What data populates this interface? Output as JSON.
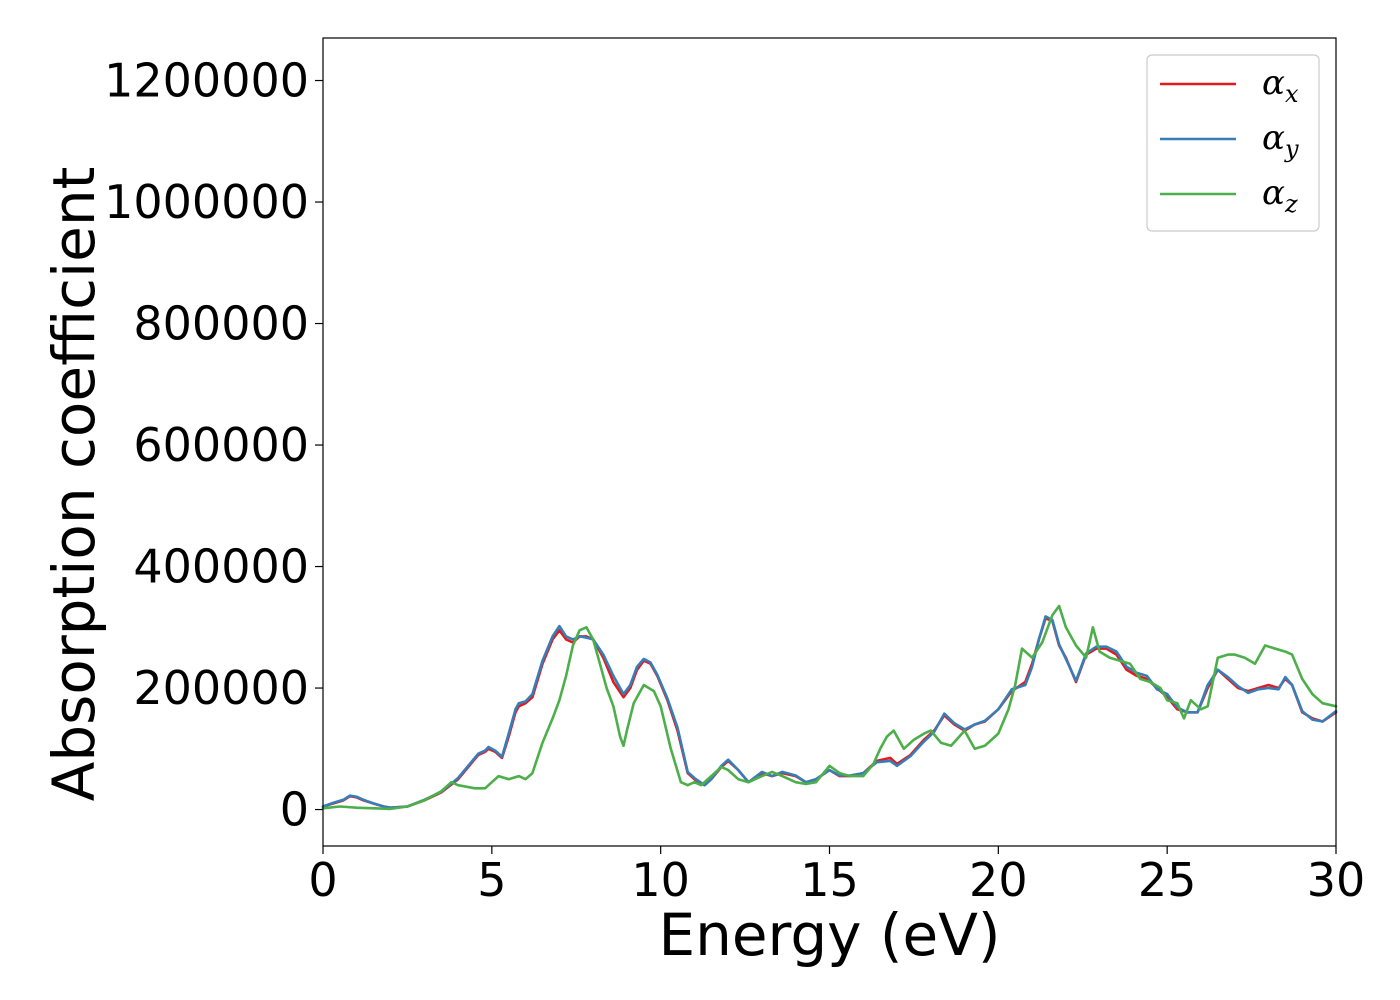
{
  "chart_data": {
    "type": "line",
    "xlabel": "Energy (eV)",
    "ylabel": "Absorption coefficient",
    "xlim": [
      0,
      30
    ],
    "ylim": [
      -60000,
      1270000
    ],
    "xticks": [
      0,
      5,
      10,
      15,
      20,
      25,
      30
    ],
    "xtick_labels": [
      "0",
      "5",
      "10",
      "15",
      "20",
      "25",
      "30"
    ],
    "yticks": [
      0,
      200000,
      400000,
      600000,
      800000,
      1000000,
      1200000
    ],
    "ytick_labels": [
      "0",
      "200000",
      "400000",
      "600000",
      "800000",
      "1000000",
      "1200000"
    ],
    "grid": false,
    "legend_position": "top-right",
    "series": [
      {
        "name": "α",
        "subscript": "x",
        "color": "#e41a1c",
        "x": [
          0,
          0.3,
          0.6,
          0.8,
          1.0,
          1.2,
          1.5,
          1.8,
          2.0,
          2.5,
          3.0,
          3.5,
          4.0,
          4.3,
          4.6,
          4.8,
          4.9,
          5.1,
          5.3,
          5.5,
          5.7,
          5.8,
          6.0,
          6.2,
          6.5,
          6.8,
          7.0,
          7.2,
          7.4,
          7.6,
          7.8,
          8.0,
          8.3,
          8.6,
          8.9,
          9.1,
          9.3,
          9.5,
          9.7,
          9.9,
          10.2,
          10.5,
          10.8,
          11.0,
          11.3,
          11.5,
          11.8,
          12.0,
          12.3,
          12.6,
          13.0,
          13.3,
          13.6,
          14.0,
          14.3,
          14.6,
          15.0,
          15.3,
          15.6,
          16.0,
          16.4,
          16.8,
          17.0,
          17.4,
          17.8,
          18.1,
          18.4,
          18.7,
          19.0,
          19.3,
          19.6,
          20.0,
          20.4,
          20.8,
          21.0,
          21.2,
          21.4,
          21.6,
          21.8,
          22.0,
          22.3,
          22.6,
          22.9,
          23.2,
          23.5,
          23.8,
          24.1,
          24.4,
          24.7,
          25.0,
          25.3,
          25.6,
          25.9,
          26.2,
          26.5,
          26.8,
          27.1,
          27.4,
          27.7,
          28.0,
          28.3,
          28.5,
          28.7,
          29.0,
          29.3,
          29.6,
          30.0
        ],
        "y": [
          5000,
          10000,
          15000,
          22000,
          20000,
          15000,
          10000,
          5000,
          3000,
          5000,
          15000,
          28000,
          50000,
          70000,
          90000,
          95000,
          100000,
          95000,
          85000,
          120000,
          160000,
          170000,
          175000,
          185000,
          240000,
          280000,
          295000,
          280000,
          275000,
          285000,
          285000,
          280000,
          250000,
          210000,
          185000,
          200000,
          230000,
          245000,
          240000,
          220000,
          180000,
          130000,
          60000,
          50000,
          40000,
          50000,
          70000,
          80000,
          65000,
          45000,
          60000,
          55000,
          60000,
          55000,
          45000,
          50000,
          65000,
          55000,
          55000,
          60000,
          80000,
          85000,
          75000,
          90000,
          115000,
          130000,
          155000,
          140000,
          130000,
          140000,
          145000,
          165000,
          195000,
          210000,
          240000,
          280000,
          315000,
          310000,
          270000,
          250000,
          210000,
          255000,
          265000,
          265000,
          255000,
          230000,
          220000,
          215000,
          200000,
          185000,
          165000,
          160000,
          160000,
          200000,
          230000,
          215000,
          200000,
          195000,
          200000,
          205000,
          200000,
          215000,
          205000,
          160000,
          150000,
          145000,
          160000
        ]
      },
      {
        "name": "α",
        "subscript": "y",
        "color": "#377eb8",
        "x": [
          0,
          0.3,
          0.6,
          0.8,
          1.0,
          1.2,
          1.5,
          1.8,
          2.0,
          2.5,
          3.0,
          3.5,
          4.0,
          4.3,
          4.6,
          4.8,
          4.9,
          5.1,
          5.3,
          5.5,
          5.7,
          5.8,
          6.0,
          6.2,
          6.5,
          6.8,
          7.0,
          7.2,
          7.4,
          7.6,
          7.8,
          8.0,
          8.3,
          8.6,
          8.9,
          9.1,
          9.3,
          9.5,
          9.7,
          9.9,
          10.2,
          10.5,
          10.8,
          11.0,
          11.3,
          11.5,
          11.8,
          12.0,
          12.3,
          12.6,
          13.0,
          13.3,
          13.6,
          14.0,
          14.3,
          14.6,
          15.0,
          15.3,
          15.6,
          16.0,
          16.4,
          16.8,
          17.0,
          17.4,
          17.8,
          18.1,
          18.4,
          18.7,
          19.0,
          19.3,
          19.6,
          20.0,
          20.4,
          20.8,
          21.0,
          21.2,
          21.4,
          21.6,
          21.8,
          22.0,
          22.3,
          22.6,
          22.9,
          23.2,
          23.5,
          23.8,
          24.1,
          24.4,
          24.7,
          25.0,
          25.3,
          25.6,
          25.9,
          26.2,
          26.5,
          26.8,
          27.1,
          27.4,
          27.7,
          28.0,
          28.3,
          28.5,
          28.7,
          29.0,
          29.3,
          29.6,
          30.0
        ],
        "y": [
          5000,
          11000,
          16000,
          23000,
          21000,
          16000,
          10000,
          5000,
          3000,
          5000,
          16000,
          29000,
          52000,
          72000,
          92000,
          97000,
          103000,
          97000,
          87000,
          125000,
          165000,
          175000,
          178000,
          190000,
          245000,
          285000,
          302000,
          285000,
          280000,
          285000,
          283000,
          280000,
          255000,
          220000,
          190000,
          205000,
          235000,
          248000,
          242000,
          222000,
          183000,
          135000,
          62000,
          52000,
          40000,
          50000,
          72000,
          82000,
          65000,
          45000,
          62000,
          55000,
          62000,
          56000,
          45000,
          50000,
          65000,
          56000,
          56000,
          60000,
          78000,
          80000,
          72000,
          88000,
          112000,
          128000,
          158000,
          142000,
          132000,
          140000,
          146000,
          165000,
          198000,
          205000,
          235000,
          280000,
          318000,
          312000,
          272000,
          248000,
          212000,
          257000,
          268000,
          268000,
          260000,
          235000,
          225000,
          220000,
          198000,
          190000,
          168000,
          160000,
          160000,
          205000,
          230000,
          218000,
          203000,
          192000,
          198000,
          200000,
          198000,
          218000,
          205000,
          162000,
          148000,
          145000,
          162000
        ]
      },
      {
        "name": "α",
        "subscript": "z",
        "color": "#4daf4a",
        "x": [
          0,
          0.5,
          1.0,
          1.5,
          2.0,
          2.5,
          3.0,
          3.5,
          3.8,
          4.0,
          4.5,
          4.8,
          5.0,
          5.2,
          5.5,
          5.8,
          6.0,
          6.2,
          6.5,
          6.8,
          7.0,
          7.2,
          7.4,
          7.6,
          7.8,
          8.0,
          8.2,
          8.4,
          8.6,
          8.8,
          8.9,
          9.0,
          9.2,
          9.5,
          9.8,
          10.0,
          10.3,
          10.6,
          10.8,
          11.0,
          11.2,
          11.5,
          11.8,
          12.0,
          12.3,
          12.6,
          13.0,
          13.3,
          13.6,
          14.0,
          14.3,
          14.6,
          15.0,
          15.3,
          15.6,
          16.0,
          16.3,
          16.5,
          16.7,
          16.9,
          17.2,
          17.5,
          17.8,
          18.0,
          18.3,
          18.6,
          19.0,
          19.3,
          19.6,
          20.0,
          20.3,
          20.5,
          20.7,
          21.0,
          21.3,
          21.6,
          21.8,
          22.0,
          22.3,
          22.6,
          22.8,
          23.0,
          23.3,
          23.6,
          23.9,
          24.2,
          24.5,
          24.8,
          25.0,
          25.3,
          25.5,
          25.7,
          26.0,
          26.2,
          26.5,
          26.8,
          27.0,
          27.3,
          27.6,
          27.9,
          28.2,
          28.5,
          28.7,
          29.0,
          29.3,
          29.6,
          30.0
        ],
        "y": [
          2000,
          5000,
          3000,
          2000,
          1000,
          5000,
          15000,
          30000,
          45000,
          40000,
          35000,
          35000,
          45000,
          55000,
          50000,
          55000,
          50000,
          60000,
          110000,
          150000,
          180000,
          220000,
          270000,
          295000,
          300000,
          280000,
          240000,
          200000,
          170000,
          120000,
          105000,
          130000,
          175000,
          205000,
          195000,
          170000,
          100000,
          45000,
          40000,
          45000,
          40000,
          55000,
          70000,
          65000,
          50000,
          45000,
          55000,
          62000,
          55000,
          45000,
          42000,
          45000,
          72000,
          60000,
          55000,
          55000,
          75000,
          100000,
          120000,
          130000,
          100000,
          115000,
          125000,
          130000,
          110000,
          105000,
          130000,
          100000,
          105000,
          125000,
          165000,
          205000,
          265000,
          250000,
          275000,
          320000,
          335000,
          300000,
          270000,
          250000,
          300000,
          260000,
          250000,
          245000,
          240000,
          215000,
          210000,
          200000,
          180000,
          175000,
          150000,
          180000,
          165000,
          170000,
          250000,
          255000,
          255000,
          250000,
          240000,
          270000,
          265000,
          260000,
          255000,
          215000,
          190000,
          175000,
          170000
        ]
      }
    ]
  }
}
